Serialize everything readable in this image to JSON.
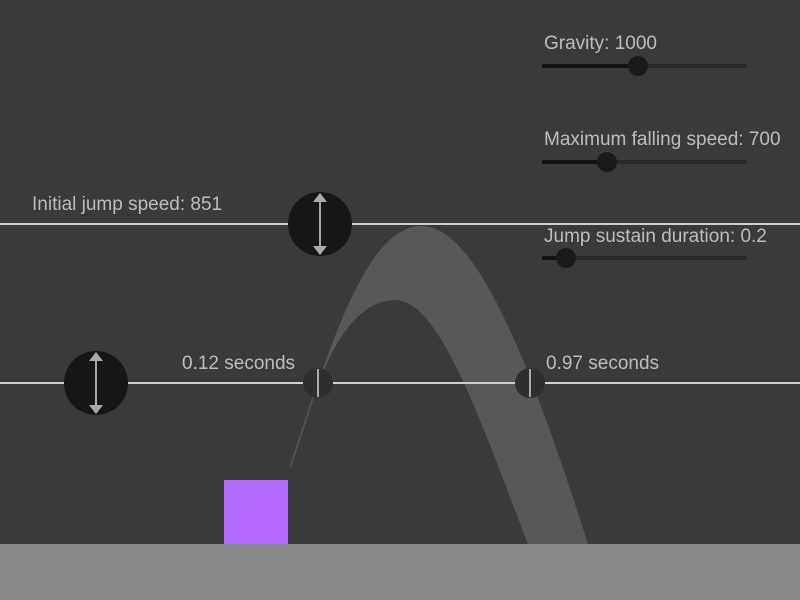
{
  "sliders": [
    {
      "label": "Gravity: 1000"
    },
    {
      "label": "Maximum falling speed: 700"
    },
    {
      "label": "Jump sustain duration: 0.2"
    }
  ],
  "jump_speed_label": "Initial jump speed: 851",
  "time_labels": [
    "0.12 seconds",
    "0.97 seconds"
  ]
}
